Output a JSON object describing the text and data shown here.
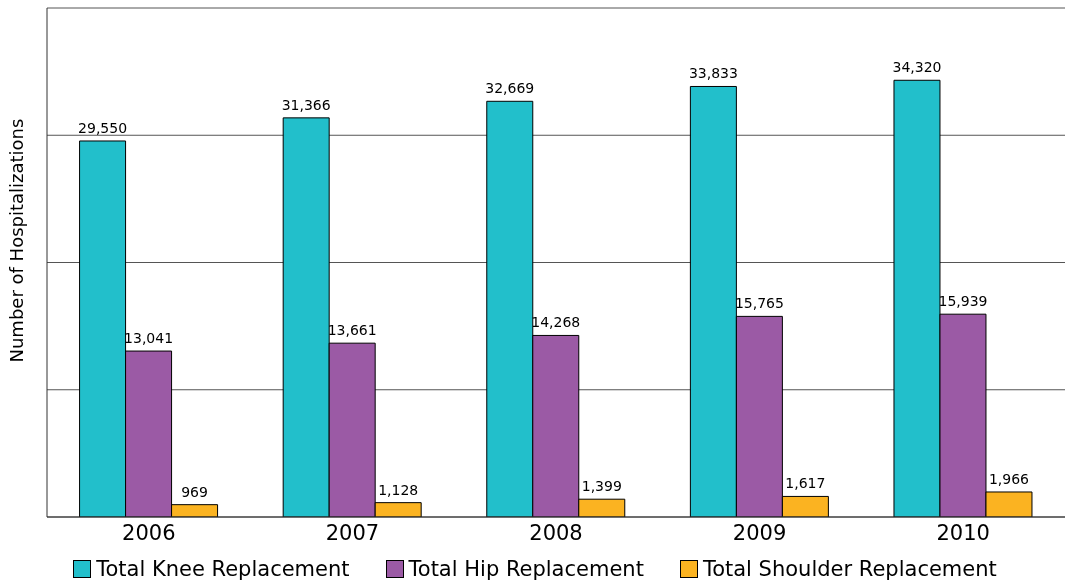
{
  "chart_data": {
    "type": "bar",
    "ylabel": "Number of Hospitalizations",
    "categories": [
      "2006",
      "2007",
      "2008",
      "2009",
      "2010"
    ],
    "series": [
      {
        "name": "Total Knee Replacement",
        "color": "#22bfcb",
        "values": [
          29550,
          31366,
          32669,
          33833,
          34320
        ],
        "value_labels": [
          "29,550",
          "31,366",
          "32,669",
          "33,833",
          "34,320"
        ]
      },
      {
        "name": "Total Hip Replacement",
        "color": "#9b5aa5",
        "values": [
          13041,
          13661,
          14268,
          15765,
          15939
        ],
        "value_labels": [
          "13,041",
          "13,661",
          "14,268",
          "15,765",
          "15,939"
        ]
      },
      {
        "name": "Total Shoulder Replacement",
        "color": "#fbb321",
        "values": [
          969,
          1128,
          1399,
          1617,
          1966
        ],
        "value_labels": [
          "969",
          "1,128",
          "1,399",
          "1,617",
          "1,966"
        ]
      }
    ],
    "ylim": [
      0,
      40000
    ],
    "tick_labels": "x",
    "grid": "y",
    "legend": "bottom"
  }
}
